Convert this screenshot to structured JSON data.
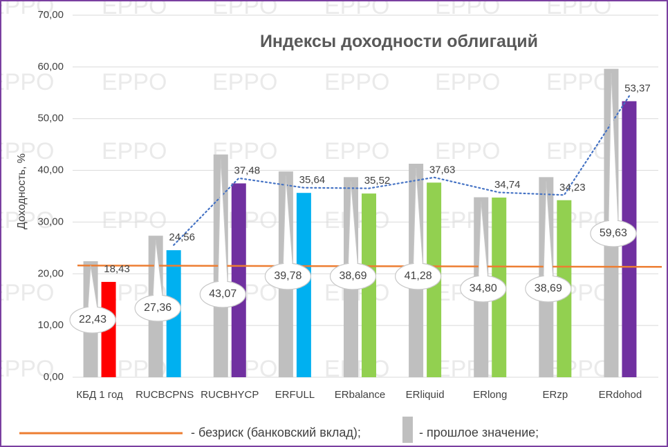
{
  "chart_data": {
    "type": "bar",
    "title": "Индексы доходности облигаций",
    "ylabel": "Доходность, %",
    "xlabel": "",
    "ylim": [
      0,
      70
    ],
    "yticks": [
      "0,00",
      "10,00",
      "20,00",
      "30,00",
      "40,00",
      "50,00",
      "60,00",
      "70,00"
    ],
    "grid": true,
    "categories": [
      "КБД 1 год",
      "RUCBCPNS",
      "RUCBHYCP",
      "ERFULL",
      "ERbalance",
      "ERliquid",
      "ERlong",
      "ERzp",
      "ERdohod"
    ],
    "series": [
      {
        "values": [
          22.43,
          27.36,
          43.07,
          39.78,
          38.69,
          41.28,
          34.8,
          38.69,
          59.63
        ],
        "labels": [
          "22,43",
          "27,36",
          "43,07",
          "39,78",
          "38,69",
          "41,28",
          "34,80",
          "38,69",
          "59,63"
        ],
        "color": "#bfbfbf"
      },
      {
        "values": [
          18.43,
          24.56,
          37.48,
          35.64,
          35.52,
          37.63,
          34.74,
          34.23,
          53.37
        ],
        "labels": [
          "18,43",
          "24,56",
          "37,48",
          "35,64",
          "35,52",
          "37,63",
          "34,74",
          "34,23",
          "53,37"
        ],
        "colors": [
          "#ff0000",
          "#00b0f0",
          "#7030a0",
          "#00b0f0",
          "#92d050",
          "#92d050",
          "#92d050",
          "#92d050",
          "#7030a0"
        ]
      }
    ],
    "riskfree_value": 21.6,
    "riskfree_color": "#ed7d31",
    "trend_color": "#4472c4",
    "legend": {
      "placement": "bottom",
      "riskfree_text": "- безриск (банковский вклад);",
      "previous_text": "- прошлое значение;"
    }
  },
  "watermark": "EPPO"
}
